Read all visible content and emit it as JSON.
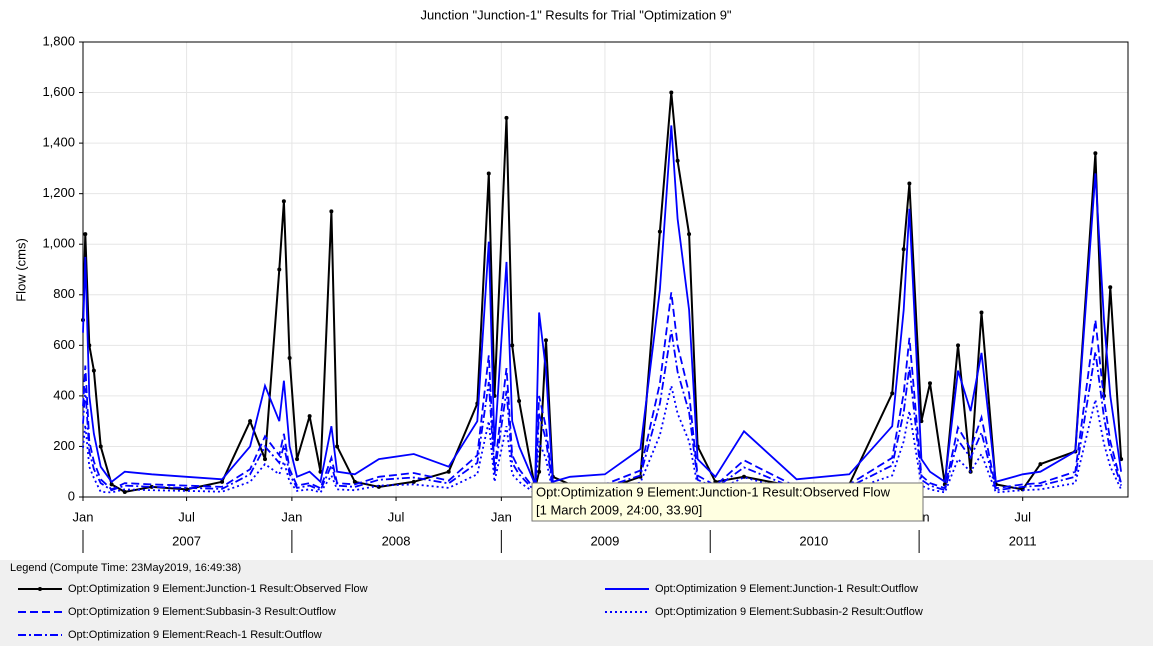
{
  "chart_data": {
    "type": "line",
    "title": "Junction \"Junction-1\" Results for Trial \"Optimization 9\"",
    "y_label": "Flow (cms)",
    "legend_title": "Legend (Compute Time: 23May2019, 16:49:38)",
    "tooltip": [
      "Opt:Optimization 9 Element:Junction-1 Result:Observed Flow",
      "[1 March 2009, 24:00, 33.90]"
    ],
    "grid": true,
    "xlim": [
      "2007-01-01",
      "2012-01-01"
    ],
    "ylim": [
      0,
      1800
    ],
    "yticks": [
      0,
      200,
      400,
      600,
      800,
      {
        "value": 1000,
        "label": "1,000"
      },
      {
        "value": 1200,
        "label": "1,200"
      },
      {
        "value": 1400,
        "label": "1,400"
      },
      {
        "value": 1600,
        "label": "1,600"
      },
      {
        "value": 1800,
        "label": "1,800"
      }
    ],
    "xticks": [
      {
        "value": "2007-01-01",
        "label": "Jan"
      },
      {
        "value": "2007-07-01",
        "label": "Jul"
      },
      {
        "value": "2008-01-01",
        "label": "Jan"
      },
      {
        "value": "2008-07-01",
        "label": "Jul"
      },
      {
        "value": "2009-01-01",
        "label": "Jan"
      },
      {
        "value": "2009-07-01",
        "label": "Jul"
      },
      {
        "value": "2010-01-01",
        "label": "Jan"
      },
      {
        "value": "2010-07-01",
        "label": "Jul"
      },
      {
        "value": "2011-01-01",
        "label": "Jan"
      },
      {
        "value": "2011-07-01",
        "label": "Jul"
      }
    ],
    "year_labels": [
      {
        "value": "2007-07-01",
        "label": "2007"
      },
      {
        "value": "2008-07-01",
        "label": "2008"
      },
      {
        "value": "2009-07-01",
        "label": "2009"
      },
      {
        "value": "2010-07-01",
        "label": "2010"
      },
      {
        "value": "2011-07-01",
        "label": "2011"
      }
    ],
    "x": [
      "2007-01-01",
      "2007-01-05",
      "2007-01-12",
      "2007-01-20",
      "2007-02-01",
      "2007-02-20",
      "2007-03-15",
      "2007-05-01",
      "2007-07-01",
      "2007-09-01",
      "2007-10-20",
      "2007-11-15",
      "2007-12-10",
      "2007-12-18",
      "2007-12-28",
      "2008-01-10",
      "2008-02-01",
      "2008-02-20",
      "2008-03-10",
      "2008-03-20",
      "2008-04-20",
      "2008-06-01",
      "2008-08-01",
      "2008-10-01",
      "2008-11-20",
      "2008-12-10",
      "2008-12-20",
      "2009-01-10",
      "2009-01-20",
      "2009-02-01",
      "2009-03-01",
      "2009-03-08",
      "2009-03-20",
      "2009-04-01",
      "2009-05-01",
      "2009-07-01",
      "2009-09-01",
      "2009-10-05",
      "2009-10-25",
      "2009-11-05",
      "2009-11-25",
      "2009-12-10",
      "2010-01-10",
      "2010-03-01",
      "2010-06-01",
      "2010-09-01",
      "2010-11-15",
      "2010-12-05",
      "2010-12-15",
      "2011-01-05",
      "2011-01-20",
      "2011-02-15",
      "2011-03-10",
      "2011-04-01",
      "2011-04-20",
      "2011-05-15",
      "2011-07-01",
      "2011-08-01",
      "2011-10-01",
      "2011-11-05",
      "2011-11-20",
      "2011-12-01",
      "2011-12-20"
    ],
    "series": [
      {
        "name": "Opt:Optimization 9 Element:Junction-1 Result:Observed Flow",
        "color": "#000000",
        "dash": "solid",
        "marker": true,
        "values": [
          700,
          1040,
          600,
          500,
          200,
          50,
          20,
          40,
          30,
          60,
          300,
          150,
          900,
          1170,
          550,
          150,
          320,
          100,
          1130,
          200,
          60,
          40,
          60,
          100,
          370,
          1280,
          400,
          1500,
          600,
          380,
          33.9,
          100,
          620,
          80,
          50,
          30,
          80,
          1050,
          1600,
          1330,
          1040,
          200,
          60,
          80,
          40,
          50,
          410,
          980,
          1240,
          300,
          450,
          50,
          600,
          100,
          730,
          50,
          30,
          130,
          180,
          1360,
          400,
          830,
          150
        ]
      },
      {
        "name": "Opt:Optimization 9 Element:Junction-1 Result:Outflow",
        "color": "#0000ff",
        "dash": "solid",
        "marker": false,
        "values": [
          650,
          950,
          400,
          250,
          120,
          60,
          100,
          90,
          80,
          70,
          200,
          440,
          300,
          460,
          200,
          80,
          100,
          60,
          280,
          100,
          90,
          150,
          170,
          120,
          300,
          1010,
          200,
          930,
          300,
          200,
          50,
          730,
          500,
          60,
          80,
          90,
          190,
          820,
          1470,
          1100,
          740,
          150,
          80,
          260,
          70,
          90,
          280,
          740,
          1140,
          150,
          100,
          60,
          500,
          340,
          570,
          60,
          90,
          100,
          180,
          1280,
          700,
          400,
          100
        ]
      },
      {
        "name": "Opt:Optimization 9 Element:Subbasin-3 Result:Outflow",
        "color": "#0000ff",
        "dash": "dashed",
        "marker": false,
        "values": [
          360,
          520,
          220,
          140,
          70,
          30,
          55,
          50,
          45,
          40,
          110,
          240,
          165,
          250,
          110,
          45,
          55,
          35,
          155,
          55,
          50,
          80,
          95,
          65,
          165,
          560,
          110,
          510,
          165,
          110,
          28,
          400,
          275,
          35,
          45,
          50,
          105,
          450,
          810,
          600,
          410,
          85,
          45,
          145,
          40,
          50,
          155,
          410,
          630,
          85,
          55,
          35,
          275,
          190,
          315,
          35,
          50,
          55,
          100,
          700,
          385,
          220,
          55
        ]
      },
      {
        "name": "Opt:Optimization 9 Element:Subbasin-2 Result:Outflow",
        "color": "#0000ff",
        "dash": "dotted",
        "marker": false,
        "values": [
          195,
          285,
          120,
          75,
          20,
          18,
          30,
          27,
          24,
          21,
          60,
          130,
          90,
          140,
          60,
          24,
          30,
          18,
          85,
          30,
          27,
          45,
          50,
          36,
          90,
          300,
          60,
          280,
          90,
          60,
          15,
          220,
          150,
          18,
          24,
          27,
          57,
          245,
          440,
          330,
          220,
          45,
          24,
          78,
          21,
          27,
          85,
          220,
          340,
          45,
          30,
          18,
          150,
          100,
          170,
          18,
          27,
          30,
          55,
          385,
          210,
          120,
          30
        ]
      },
      {
        "name": "Opt:Optimization 9 Element:Reach-1 Result:Outflow",
        "color": "#0000ff",
        "dash": "dashdot",
        "marker": false,
        "values": [
          290,
          430,
          180,
          110,
          55,
          27,
          45,
          40,
          36,
          32,
          90,
          200,
          135,
          205,
          90,
          36,
          45,
          27,
          125,
          45,
          40,
          68,
          77,
          54,
          135,
          455,
          90,
          420,
          135,
          90,
          22,
          330,
          225,
          27,
          36,
          40,
          85,
          370,
          660,
          495,
          335,
          68,
          36,
          117,
          32,
          40,
          125,
          335,
          515,
          68,
          45,
          27,
          225,
          155,
          255,
          27,
          40,
          45,
          80,
          575,
          315,
          180,
          45
        ]
      }
    ]
  }
}
